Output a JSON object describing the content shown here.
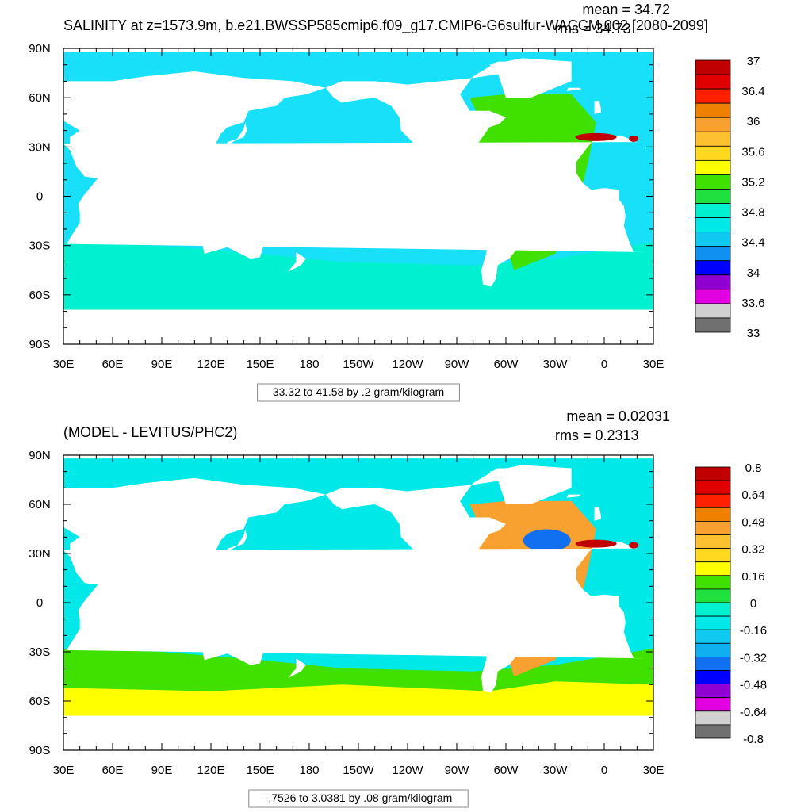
{
  "chart_data": [
    {
      "type": "heatmap",
      "subtype": "filled-contour-map",
      "title": "SALINITY at z=1573.9m, b.e21.BWSSP585cmip6.f09_g17.CMIP6-G6sulfur-WACCM.002 [2080-2099]",
      "mean_text": "mean = 34.72",
      "rms_text": "rms = 34.73",
      "contour_info": "33.32 to 41.58 by .2 gram/kilogram",
      "x_ticks": [
        "30E",
        "60E",
        "90E",
        "120E",
        "150E",
        "180",
        "150W",
        "120W",
        "90W",
        "60W",
        "30W",
        "0",
        "30E"
      ],
      "y_ticks": [
        "90N",
        "60N",
        "30N",
        "0",
        "30S",
        "60S",
        "90S"
      ],
      "colorbar": {
        "labels": [
          "37",
          "36.4",
          "36",
          "35.6",
          "35.2",
          "34.8",
          "34.4",
          "34",
          "33.6",
          "33"
        ],
        "colors": [
          "#c00000",
          "#e00000",
          "#ff2000",
          "#f08000",
          "#f8a030",
          "#fcc030",
          "#ffd820",
          "#ffff00",
          "#40e000",
          "#20e040",
          "#00f0d0",
          "#00e8e8",
          "#10c8f0",
          "#1090f0",
          "#0000ff",
          "#9000d0",
          "#e000e0",
          "#d0d0d0",
          "#707070"
        ]
      },
      "regions": {
        "ocean": "#18e0f8",
        "southern_band": "#00f0d0",
        "atlantic": "#40e000",
        "mediterranean": "#c00000",
        "arctic": "#00e8e8"
      }
    },
    {
      "type": "heatmap",
      "subtype": "filled-contour-map",
      "title": "(MODEL - LEVITUS/PHC2)",
      "mean_text": "mean = 0.02031",
      "rms_text": "rms = 0.2313",
      "contour_info": "-.7526 to 3.0381 by .08 gram/kilogram",
      "x_ticks": [
        "30E",
        "60E",
        "90E",
        "120E",
        "150E",
        "180",
        "150W",
        "120W",
        "90W",
        "60W",
        "30W",
        "0",
        "30E"
      ],
      "y_ticks": [
        "90N",
        "60N",
        "30N",
        "0",
        "30S",
        "60S",
        "90S"
      ],
      "colorbar": {
        "labels": [
          "0.8",
          "0.64",
          "0.48",
          "0.32",
          "0.16",
          "0",
          "-0.16",
          "-0.32",
          "-0.48",
          "-0.64",
          "-0.8"
        ],
        "colors": [
          "#c00000",
          "#e00000",
          "#ff2000",
          "#f08000",
          "#f8a030",
          "#fcc030",
          "#ffd820",
          "#ffff00",
          "#40e000",
          "#20e040",
          "#00f0d0",
          "#00e8e8",
          "#10c8f0",
          "#10b0f0",
          "#1070f0",
          "#0000ff",
          "#9000d0",
          "#e000e0",
          "#d0d0d0",
          "#707070"
        ]
      },
      "regions": {
        "ocean": "#00e8e8",
        "southern_band": "#40e000",
        "southern_ring": "#ffff00",
        "atlantic": "#f8a030",
        "gulf_anomaly": "#1070f0",
        "mediterranean": "#c00000"
      }
    }
  ]
}
